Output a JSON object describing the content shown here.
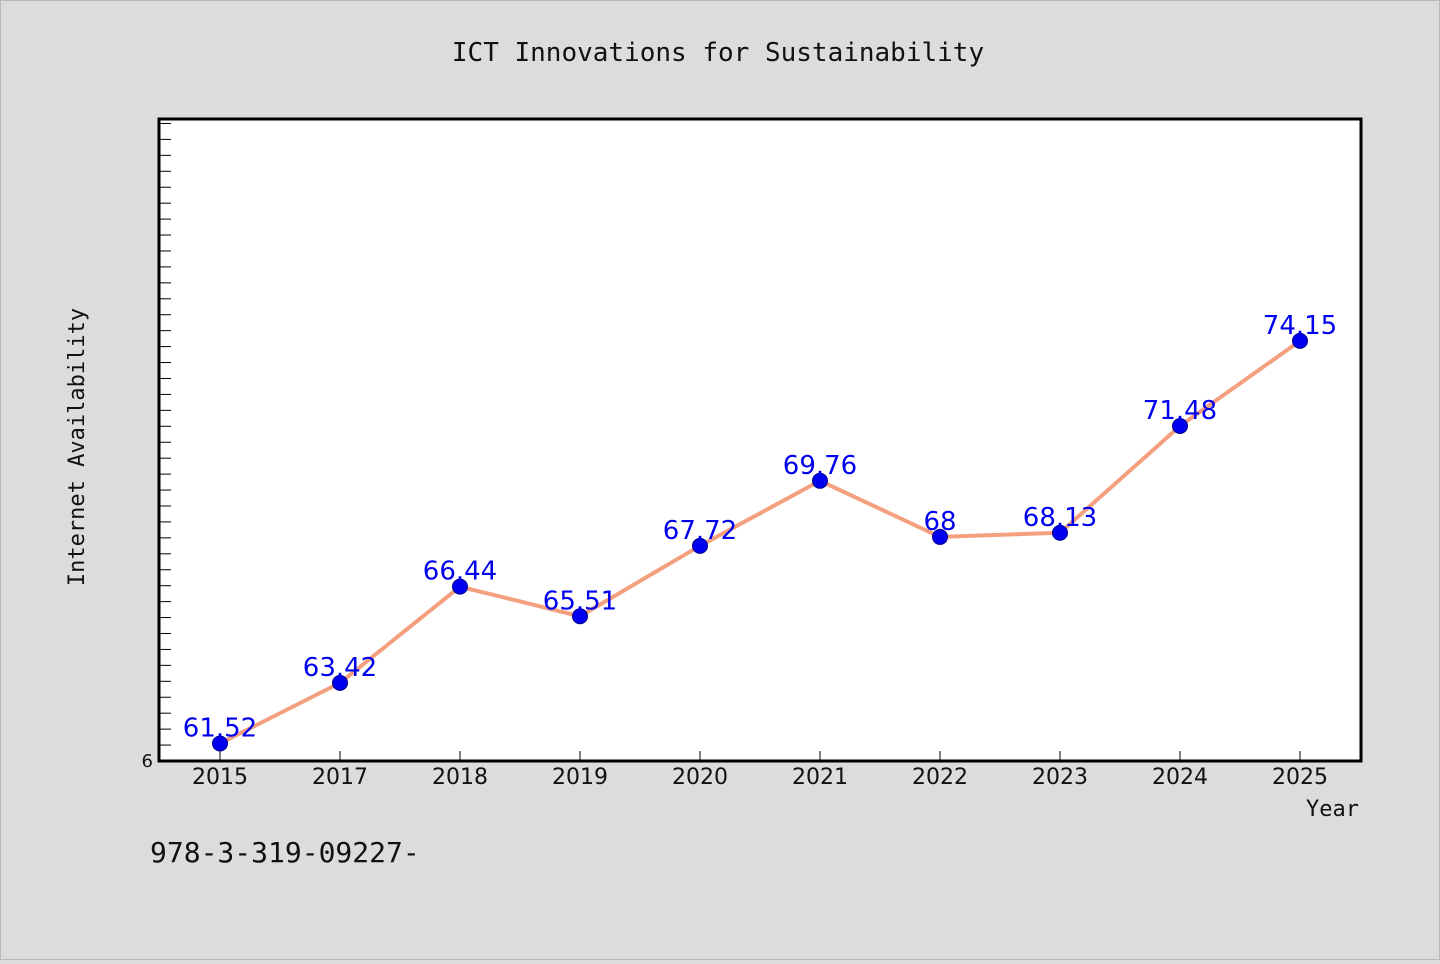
{
  "chart_data": {
    "type": "line",
    "title": "ICT Innovations for Sustainability",
    "xlabel": "Year",
    "ylabel": "Internet Availability",
    "categories": [
      "2015",
      "2017",
      "2018",
      "2019",
      "2020",
      "2021",
      "2022",
      "2023",
      "2024",
      "2025"
    ],
    "series": [
      {
        "values": [
          61.52,
          63.42,
          66.44,
          65.51,
          67.72,
          69.76,
          68,
          68.13,
          71.48,
          74.15
        ],
        "labels": [
          "61.52",
          "63.42",
          "66.44",
          "65.51",
          "67.72",
          "69.76",
          "68",
          "68.13",
          "71.48",
          "74.15"
        ]
      }
    ],
    "ylim": [
      60.97,
      81.11
    ],
    "y_tick_step": 0.5,
    "y_tick_labels_shown": [
      {
        "value": 60.97,
        "label": "6"
      }
    ],
    "grid": false,
    "legend": "none",
    "colors": {
      "line": "#f4a07f",
      "marker": "#0000ee",
      "data_label": "#0000ee",
      "plot_background": "#ffffff",
      "page_background": "#dcdcdc"
    }
  },
  "footer": {
    "isbn_text": "978-3-319-09227-"
  }
}
